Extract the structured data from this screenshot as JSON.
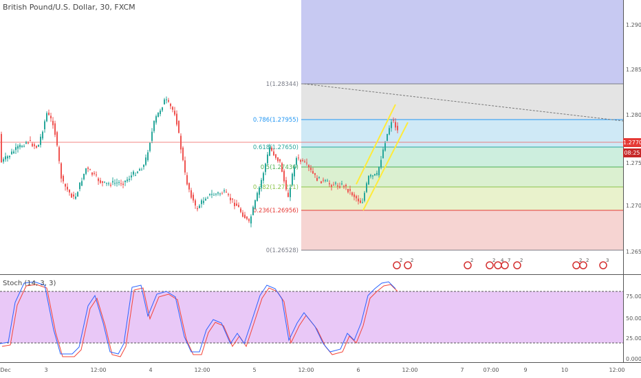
{
  "chart": {
    "title": "British Pound/U.S. Dollar, 30, FXCM",
    "current_price": "1.27704",
    "countdown": "08:25",
    "price_axis": [
      "1.29000",
      "1.28500",
      "1.28000",
      "1.27500",
      "1.27000",
      "1.26500"
    ],
    "fib_levels": [
      {
        "label": "1(1.28344)",
        "color": "#787b86"
      },
      {
        "label": "0.786(1.27955)",
        "color": "#2196f3"
      },
      {
        "label": "0.618(1.27650)",
        "color": "#26a69a"
      },
      {
        "label": "0.5(1.27436)",
        "color": "#4caf50"
      },
      {
        "label": "0.382(1.27221)",
        "color": "#8bc34a"
      },
      {
        "label": "0.236(1.26956)",
        "color": "#e53935"
      },
      {
        "label": "0(1.26528)",
        "color": "#787b86"
      }
    ],
    "event_badges": [
      "2",
      "2",
      "2",
      "2",
      "4",
      "7",
      "2",
      "2",
      "2",
      "3"
    ]
  },
  "stoch": {
    "title": "Stoch (14, 3, 3)",
    "axis": [
      "75.0000",
      "50.0000",
      "25.0000",
      "0.0000"
    ]
  },
  "time_axis": [
    "Dec",
    "3",
    "12:00",
    "4",
    "12:00",
    "5",
    "12:00",
    "6",
    "12:00",
    "7",
    "07:00",
    "9",
    "10",
    "12:00"
  ],
  "colors": {
    "up": "#26a69a",
    "down": "#ef5350",
    "k_line": "#2962ff",
    "d_line": "#f44336",
    "channel": "#ffeb3b"
  }
}
